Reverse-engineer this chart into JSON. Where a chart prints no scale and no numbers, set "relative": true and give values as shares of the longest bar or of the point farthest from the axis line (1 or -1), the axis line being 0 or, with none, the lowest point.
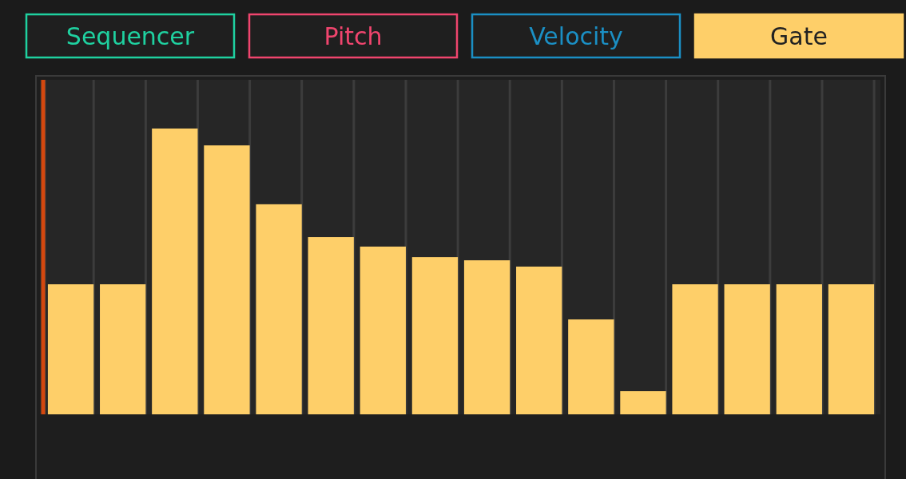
{
  "chart_data": {
    "type": "bar",
    "relative": true,
    "categories": [
      null,
      null,
      null,
      null,
      null,
      null,
      null,
      null,
      null,
      null,
      null,
      null,
      null,
      null,
      null,
      null
    ],
    "values": [
      0.455,
      0.455,
      1,
      0.941,
      0.735,
      0.62,
      0.587,
      0.55,
      0.539,
      0.517,
      0.332,
      0.081,
      0.455,
      0.455,
      0.455,
      0.455
    ],
    "color": "#fecf69",
    "annotations": [
      "Sequencer",
      "Pitch",
      "Velocity",
      "Gate"
    ]
  }
}
